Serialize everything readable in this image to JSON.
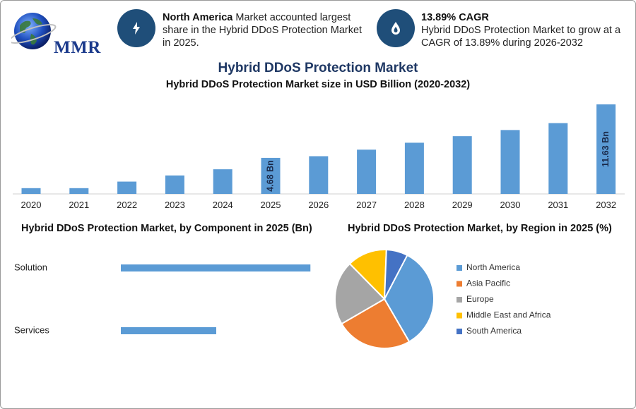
{
  "logo": {
    "text": "MMR"
  },
  "info_left": {
    "highlight": "North America",
    "text": " Market accounted largest share in the Hybrid DDoS Protection Market in 2025."
  },
  "info_right": {
    "title": "13.89% CAGR",
    "text": "Hybrid DDoS Protection Market to grow at a CAGR of 13.89% during 2026-2032"
  },
  "colors": {
    "bar": "#5b9bd5",
    "dark_circle": "#1f4e79",
    "title": "#1f3864"
  },
  "icons": {
    "left": "lightning-icon",
    "right": "drop-icon"
  },
  "chart_data": [
    {
      "type": "bar",
      "title": "Hybrid DDoS Protection Market",
      "subtitle": "Hybrid DDoS Protection Market size in USD Billion (2020-2032)",
      "categories": [
        "2020",
        "2021",
        "2022",
        "2023",
        "2024",
        "2025",
        "2026",
        "2027",
        "2028",
        "2029",
        "2030",
        "2031",
        "2032"
      ],
      "values": [
        0.75,
        0.75,
        1.6,
        2.4,
        3.2,
        4.68,
        4.9,
        5.75,
        6.65,
        7.5,
        8.3,
        9.2,
        11.63
      ],
      "data_labels": {
        "5": "4.68 Bn",
        "12": "11.63 Bn"
      },
      "ylim": [
        0,
        12
      ]
    },
    {
      "type": "bar",
      "orientation": "horizontal",
      "title": "Hybrid DDoS Protection Market, by Component in 2025 (Bn)",
      "categories": [
        "Solution",
        "Services"
      ],
      "values": [
        3.08,
        1.55
      ],
      "xlim": [
        0,
        3.1
      ]
    },
    {
      "type": "pie",
      "title": "Hybrid DDoS Protection Market, by Region in 2025 (%)",
      "categories": [
        "North America",
        "Asia Pacific",
        "Europe",
        "Middle East and Africa",
        "South America"
      ],
      "values": [
        34,
        25,
        21,
        13,
        7
      ],
      "colors": [
        "#5b9bd5",
        "#ed7d31",
        "#a5a5a5",
        "#ffc000",
        "#4472c4"
      ]
    }
  ]
}
